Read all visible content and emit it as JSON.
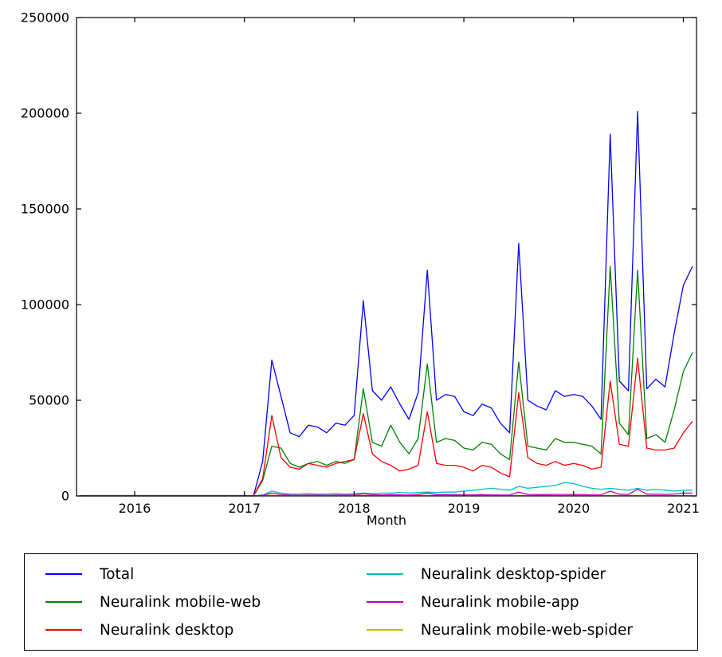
{
  "chart_data": {
    "type": "line",
    "title": "",
    "xlabel": "Month",
    "ylabel": "",
    "grid": false,
    "legend_position": "below-in-box",
    "x_range": [
      2015.47,
      2021.12
    ],
    "ylim": [
      0,
      250000
    ],
    "x_ticks": [
      2016,
      2017,
      2018,
      2019,
      2020,
      2021
    ],
    "y_ticks": [
      0,
      50000,
      100000,
      150000,
      200000,
      250000
    ],
    "months": [
      "2015-07",
      "2015-08",
      "2015-09",
      "2015-10",
      "2015-11",
      "2015-12",
      "2016-01",
      "2016-02",
      "2016-03",
      "2016-04",
      "2016-05",
      "2016-06",
      "2016-07",
      "2016-08",
      "2016-09",
      "2016-10",
      "2016-11",
      "2016-12",
      "2017-01",
      "2017-02",
      "2017-03",
      "2017-04",
      "2017-05",
      "2017-06",
      "2017-07",
      "2017-08",
      "2017-09",
      "2017-10",
      "2017-11",
      "2017-12",
      "2018-01",
      "2018-02",
      "2018-03",
      "2018-04",
      "2018-05",
      "2018-06",
      "2018-07",
      "2018-08",
      "2018-09",
      "2018-10",
      "2018-11",
      "2018-12",
      "2019-01",
      "2019-02",
      "2019-03",
      "2019-04",
      "2019-05",
      "2019-06",
      "2019-07",
      "2019-08",
      "2019-09",
      "2019-10",
      "2019-11",
      "2019-12",
      "2020-01",
      "2020-02",
      "2020-03",
      "2020-04",
      "2020-05",
      "2020-06",
      "2020-07",
      "2020-08",
      "2020-09",
      "2020-10",
      "2020-11",
      "2020-12",
      "2021-01",
      "2021-02"
    ],
    "legend_order": [
      0,
      3,
      1,
      4,
      2,
      5
    ],
    "series": [
      {
        "name": "Total",
        "color": "#0000ff",
        "values": [
          200,
          200,
          200,
          200,
          200,
          200,
          200,
          200,
          200,
          200,
          200,
          200,
          200,
          200,
          200,
          200,
          200,
          200,
          200,
          200,
          18000,
          71000,
          52000,
          33000,
          31000,
          37000,
          36000,
          33000,
          38000,
          37000,
          42000,
          102000,
          55000,
          50000,
          57000,
          48000,
          40000,
          54000,
          118000,
          50000,
          53000,
          52000,
          44000,
          42000,
          48000,
          46000,
          38000,
          33000,
          132000,
          50000,
          47000,
          45000,
          55000,
          52000,
          53000,
          52000,
          47000,
          40000,
          189000,
          60000,
          55000,
          201000,
          56000,
          61000,
          57000,
          85000,
          110000,
          120000
        ]
      },
      {
        "name": "Neuralink mobile-web",
        "color": "#008000",
        "values": [
          100,
          100,
          100,
          100,
          100,
          100,
          100,
          100,
          100,
          100,
          100,
          100,
          100,
          100,
          100,
          100,
          100,
          100,
          100,
          100,
          8000,
          26000,
          25000,
          17000,
          15000,
          17000,
          18000,
          16000,
          18000,
          17000,
          19000,
          56000,
          28000,
          26000,
          37000,
          28000,
          22000,
          30000,
          69000,
          28000,
          30000,
          29000,
          25000,
          24000,
          28000,
          27000,
          22000,
          19000,
          70000,
          26000,
          25000,
          24000,
          30000,
          28000,
          28000,
          27000,
          26000,
          22000,
          120000,
          38000,
          32000,
          118000,
          30000,
          32000,
          28000,
          45000,
          65000,
          75000
        ]
      },
      {
        "name": "Neuralink desktop",
        "color": "#ff0000",
        "values": [
          100,
          100,
          100,
          100,
          100,
          100,
          100,
          100,
          100,
          100,
          100,
          100,
          100,
          100,
          100,
          100,
          100,
          100,
          100,
          100,
          9000,
          42000,
          20000,
          15000,
          14000,
          17000,
          16000,
          15000,
          17000,
          18000,
          19000,
          43000,
          22000,
          18000,
          16000,
          13000,
          14000,
          16000,
          44000,
          17000,
          16000,
          16000,
          15000,
          13000,
          16000,
          15000,
          12000,
          10000,
          54000,
          20000,
          17000,
          16000,
          18000,
          16000,
          17000,
          16000,
          14000,
          15000,
          60000,
          27000,
          26000,
          72000,
          25000,
          24000,
          24000,
          25000,
          33000,
          39000
        ]
      },
      {
        "name": "Neuralink desktop-spider",
        "color": "#00bfbf",
        "values": [
          50,
          50,
          50,
          50,
          50,
          50,
          50,
          50,
          50,
          50,
          50,
          50,
          50,
          50,
          50,
          50,
          50,
          50,
          50,
          50,
          500,
          2500,
          1500,
          1000,
          1000,
          1200,
          1000,
          1000,
          1200,
          1000,
          1200,
          1500,
          1200,
          1500,
          1500,
          1800,
          1500,
          1800,
          2000,
          1800,
          2000,
          2000,
          2500,
          3000,
          3500,
          4000,
          3500,
          3000,
          5000,
          4000,
          4500,
          5000,
          5500,
          7000,
          6500,
          5000,
          4000,
          3500,
          4000,
          3500,
          3000,
          4000,
          3000,
          3500,
          3000,
          2500,
          3000,
          3000
        ]
      },
      {
        "name": "Neuralink mobile-app",
        "color": "#bf00bf",
        "values": [
          20,
          20,
          20,
          20,
          20,
          20,
          20,
          20,
          20,
          20,
          20,
          20,
          20,
          20,
          20,
          20,
          20,
          20,
          20,
          20,
          300,
          1500,
          800,
          500,
          400,
          500,
          500,
          400,
          500,
          500,
          600,
          1200,
          700,
          600,
          700,
          600,
          500,
          700,
          1500,
          700,
          700,
          700,
          600,
          600,
          700,
          600,
          500,
          500,
          2000,
          800,
          700,
          700,
          800,
          800,
          800,
          700,
          600,
          600,
          2500,
          900,
          800,
          3500,
          900,
          900,
          800,
          1000,
          1500,
          1500
        ]
      },
      {
        "name": "Neuralink mobile-web-spider",
        "color": "#bfbf00",
        "values": [
          10,
          10,
          10,
          10,
          10,
          10,
          10,
          10,
          10,
          10,
          10,
          10,
          10,
          10,
          10,
          10,
          10,
          10,
          10,
          10,
          100,
          400,
          200,
          200,
          200,
          200,
          200,
          200,
          200,
          200,
          200,
          300,
          200,
          200,
          200,
          200,
          200,
          200,
          300,
          200,
          200,
          200,
          200,
          200,
          200,
          200,
          200,
          200,
          300,
          200,
          200,
          200,
          200,
          200,
          200,
          200,
          200,
          200,
          300,
          200,
          200,
          300,
          200,
          200,
          200,
          200,
          200,
          200
        ]
      }
    ]
  }
}
